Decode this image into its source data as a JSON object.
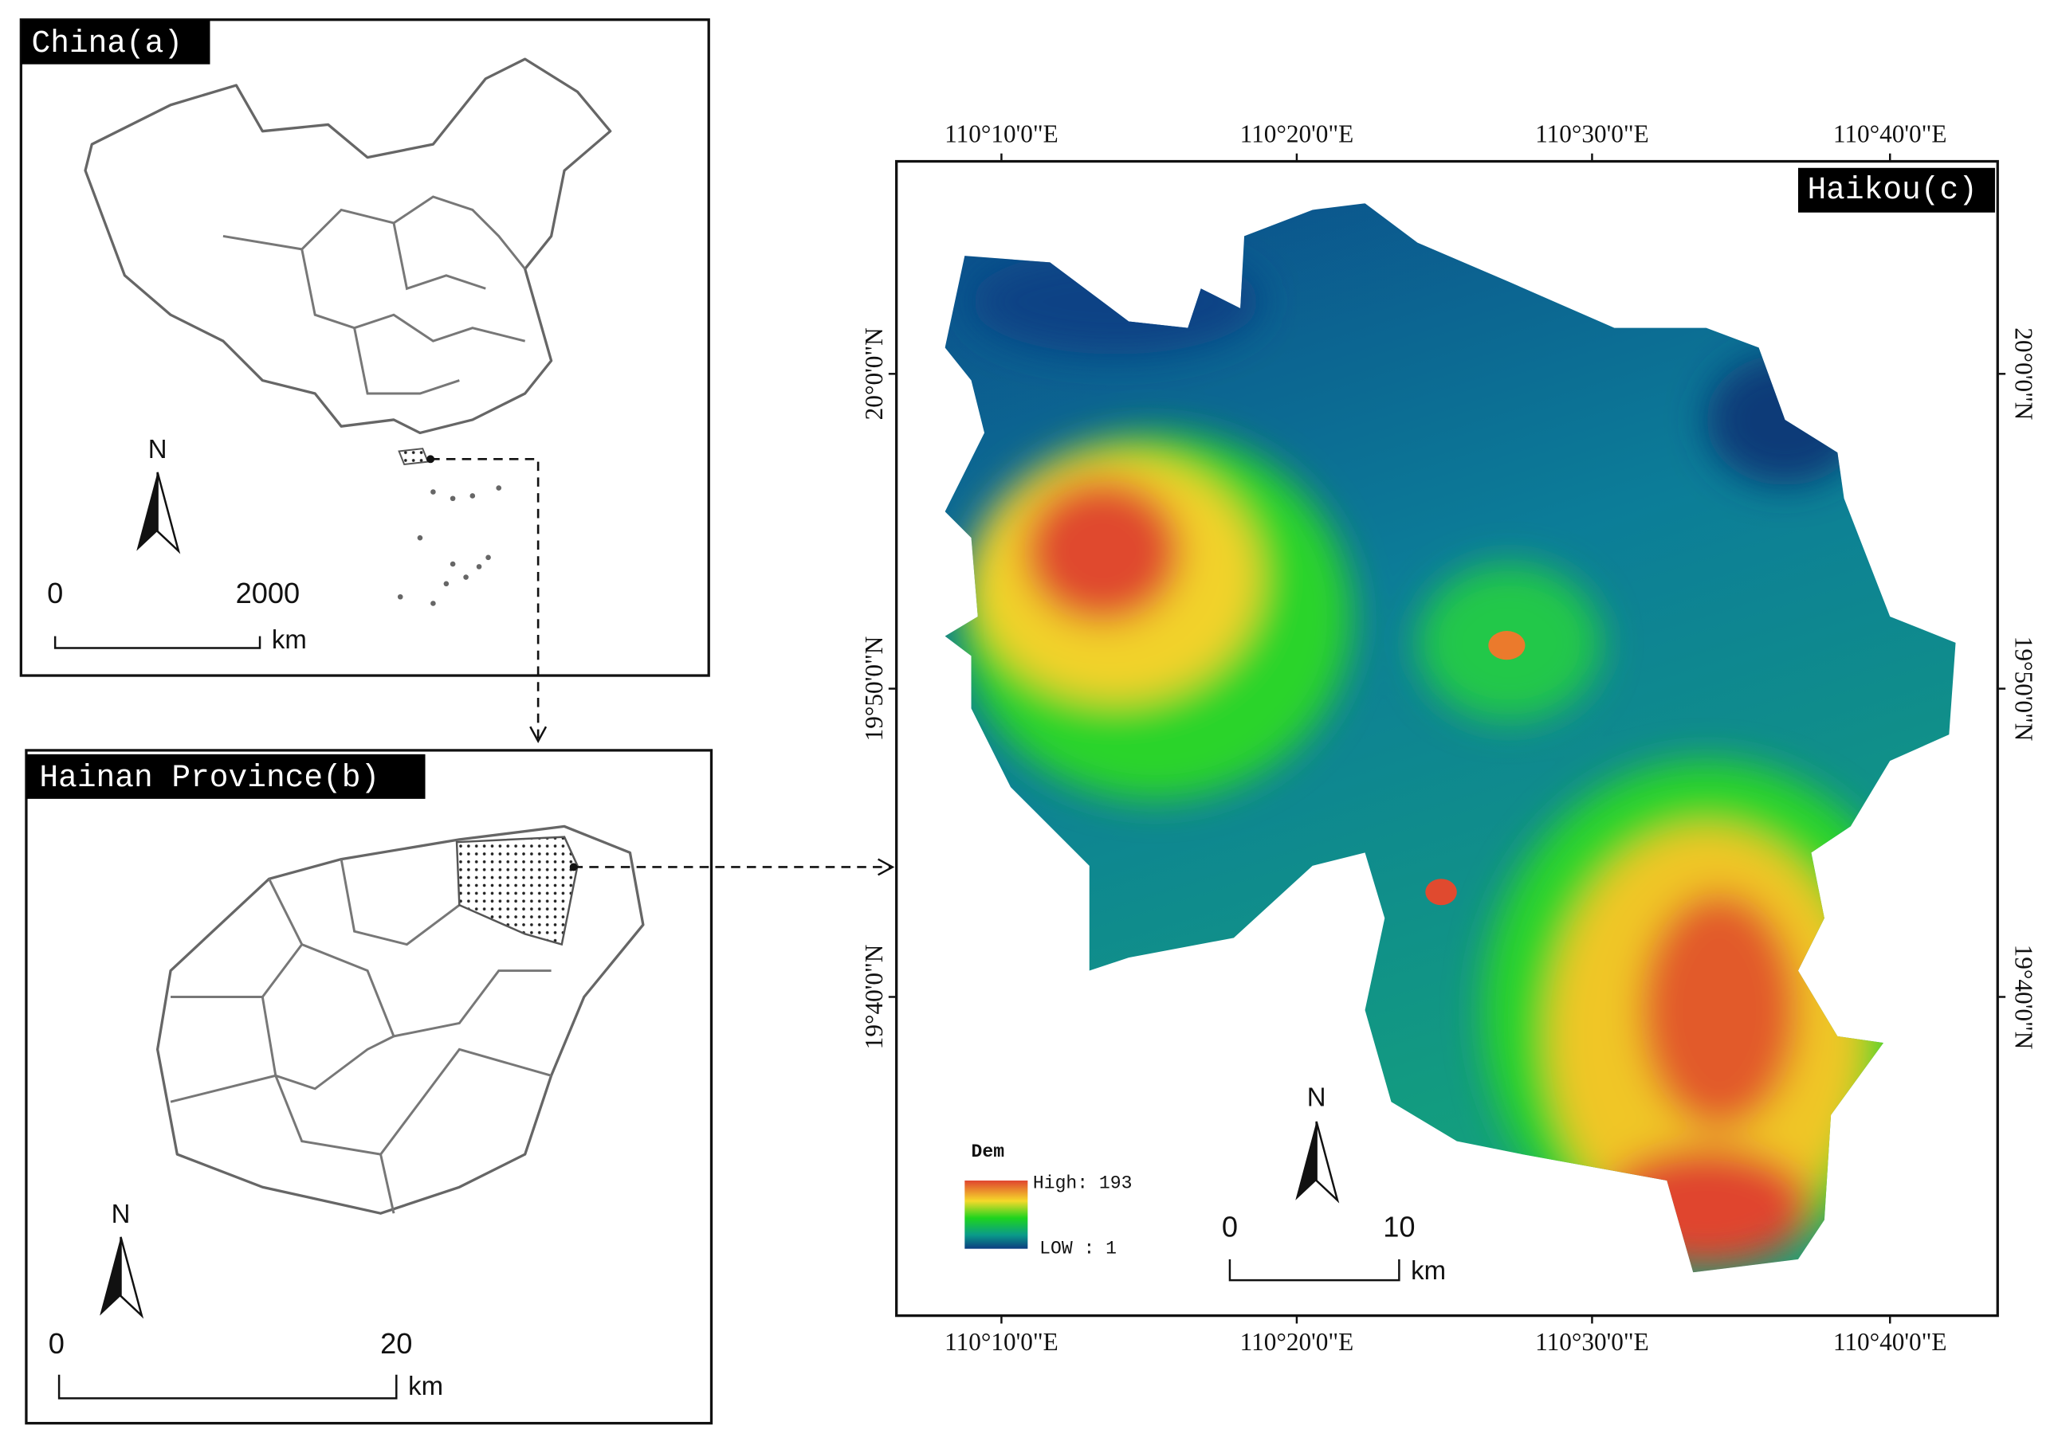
{
  "panel_a": {
    "title": "China(a)",
    "north": "N",
    "scale": {
      "start": "0",
      "end": "2000",
      "unit": "km"
    }
  },
  "panel_b": {
    "title": "Hainan Province(b)",
    "north": "N",
    "scale": {
      "start": "0",
      "end": "20",
      "unit": "km"
    }
  },
  "panel_c": {
    "title": "Haikou(c)",
    "north": "N",
    "scale": {
      "start": "0",
      "end": "10",
      "unit": "km"
    },
    "lon_labels": [
      "110°10'0\"E",
      "110°20'0\"E",
      "110°30'0\"E",
      "110°40'0\"E"
    ],
    "lat_labels": [
      "20°0'0\"N",
      "19°50'0\"N",
      "19°40'0\"N"
    ],
    "legend": {
      "title": "Dem",
      "high": "High: 193",
      "low": "LOW : 1"
    }
  }
}
